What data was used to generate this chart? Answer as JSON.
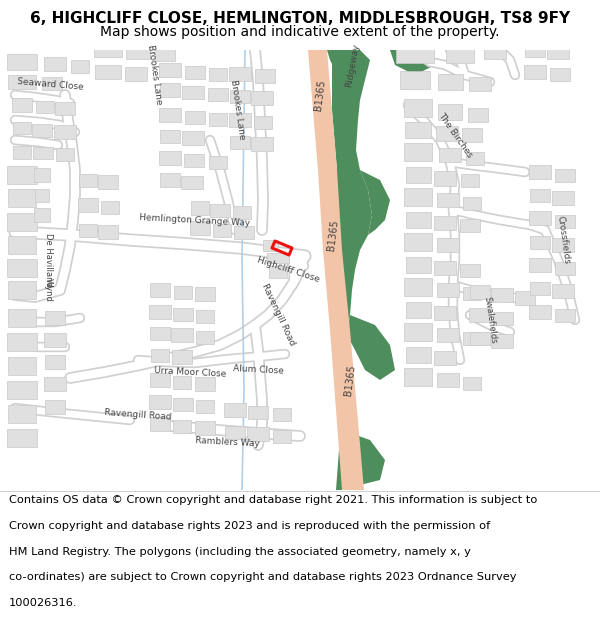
{
  "title_line1": "6, HIGHCLIFF CLOSE, HEMLINGTON, MIDDLESBROUGH, TS8 9FY",
  "title_line2": "Map shows position and indicative extent of the property.",
  "footer_lines": [
    "Contains OS data © Crown copyright and database right 2021. This information is subject to",
    "Crown copyright and database rights 2023 and is reproduced with the permission of",
    "HM Land Registry. The polygons (including the associated geometry, namely x, y",
    "co-ordinates) are subject to Crown copyright and database rights 2023 Ordnance Survey",
    "100026316."
  ],
  "bg_color": "#ffffff",
  "map_bg": "#f8f8f8",
  "road_main_color": "#f2c4a8",
  "green_color": "#4e8e5c",
  "building_color": "#e0e0e0",
  "building_outline": "#c8c8c8",
  "highlight_color": "#ee1111",
  "title_fontsize": 11,
  "subtitle_fontsize": 10,
  "footer_fontsize": 8.2
}
